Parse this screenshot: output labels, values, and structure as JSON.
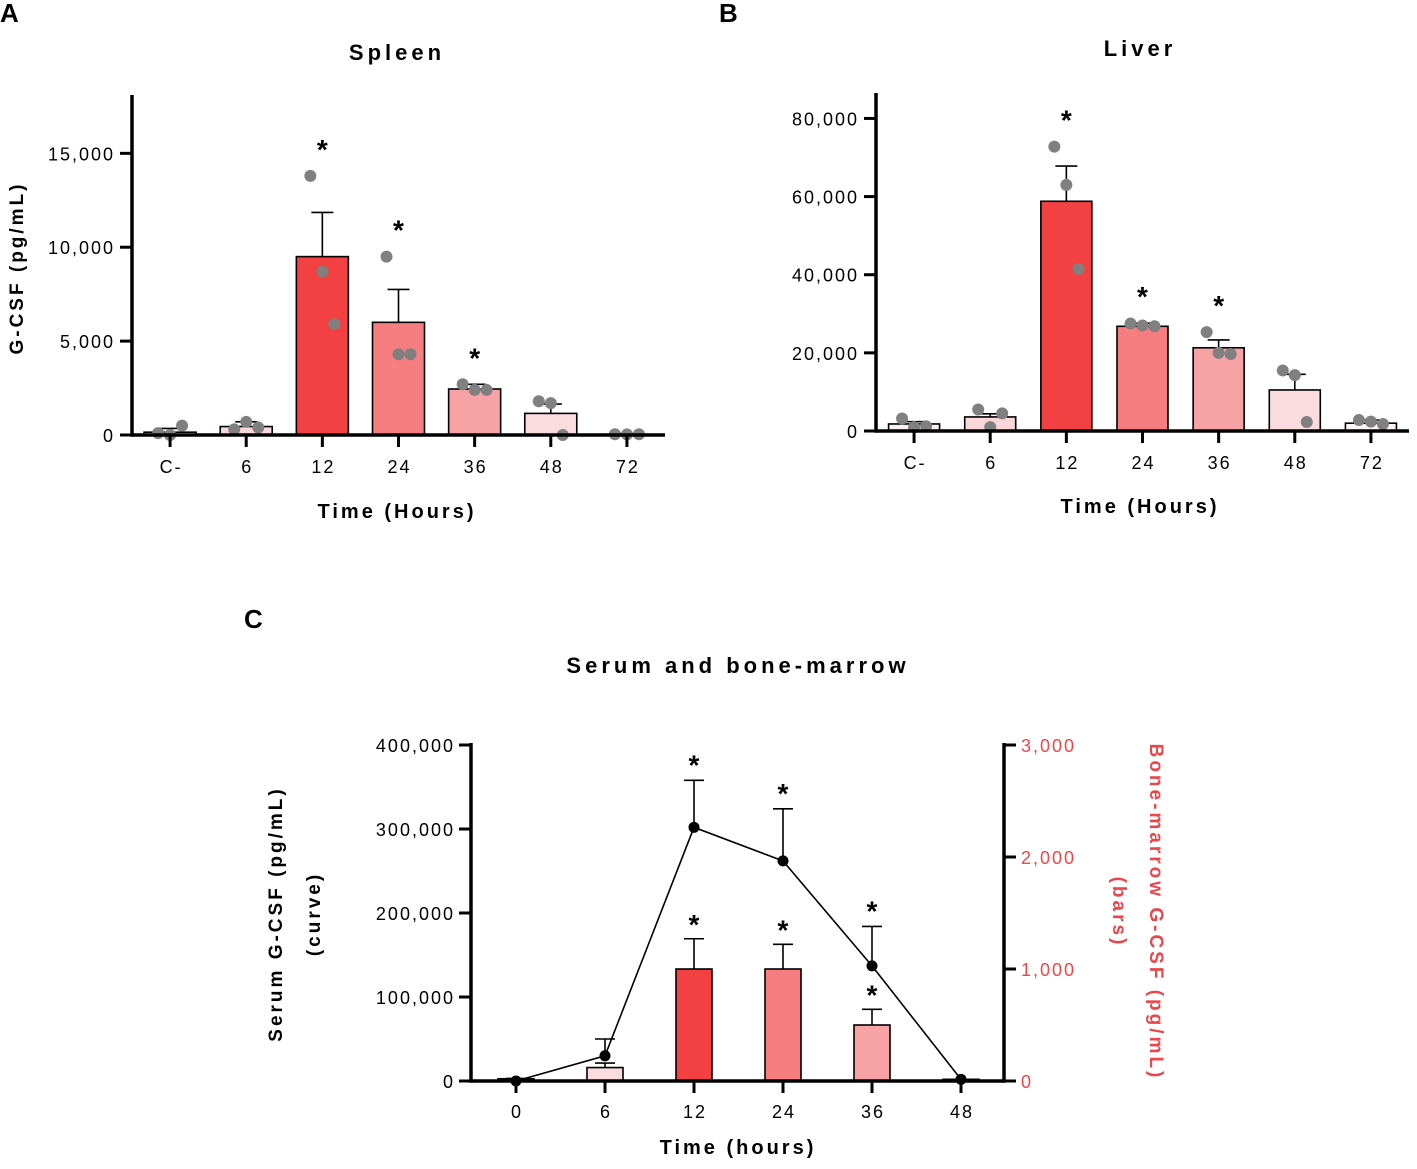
{
  "colors": {
    "axis": "#000000",
    "dot": "#808080",
    "right_axis": "#e8474c",
    "bar_fills": [
      "#fdf0f1",
      "#fbd7da",
      "#f24043",
      "#f67e81",
      "#f7a3a6",
      "#fbdcde",
      "#fff5f5"
    ]
  },
  "chart_data": [
    {
      "panel": "A",
      "type": "bar",
      "title": "Spleen",
      "xlabel": "Time (Hours)",
      "ylabel": "G-CSF (pg/mL)",
      "ylim": [
        0,
        18000
      ],
      "yticks": [
        0,
        5000,
        10000,
        15000
      ],
      "ytick_labels": [
        "0",
        "5,000",
        "10,000",
        "15,000"
      ],
      "categories": [
        "C-",
        "6",
        "12",
        "24",
        "36",
        "48",
        "72"
      ],
      "values": [
        150,
        450,
        9500,
        6000,
        2450,
        1150,
        40
      ],
      "errors": [
        200,
        250,
        2350,
        1750,
        250,
        500,
        40
      ],
      "points": [
        [
          100,
          0,
          500
        ],
        [
          300,
          700,
          400
        ],
        [
          13800,
          8700,
          5900
        ],
        [
          9500,
          4300,
          4300
        ],
        [
          2700,
          2400,
          2400
        ],
        [
          1800,
          1700,
          0
        ],
        [
          40,
          30,
          40
        ]
      ],
      "significant": [
        false,
        false,
        true,
        true,
        true,
        false,
        false
      ],
      "star_label": "*"
    },
    {
      "panel": "B",
      "type": "bar",
      "title": "Liver",
      "xlabel": "Time (Hours)",
      "ylabel": "",
      "ylim": [
        0,
        86000
      ],
      "yticks": [
        0,
        20000,
        40000,
        60000,
        80000
      ],
      "ytick_labels": [
        "0",
        "20,000",
        "40,000",
        "60,000",
        "80,000"
      ],
      "categories": [
        "C-",
        "6",
        "12",
        "24",
        "36",
        "48",
        "72"
      ],
      "values": [
        1800,
        3600,
        58800,
        26800,
        21300,
        10500,
        2000
      ],
      "errors": [
        600,
        800,
        9000,
        800,
        2000,
        4000,
        800
      ],
      "points": [
        [
          3200,
          1000,
          1200
        ],
        [
          5500,
          1000,
          4500
        ],
        [
          72800,
          63000,
          41500
        ],
        [
          27500,
          27000,
          26800
        ],
        [
          25300,
          20000,
          19700
        ],
        [
          15500,
          14300,
          2300
        ],
        [
          2800,
          2400,
          1800
        ]
      ],
      "significant": [
        false,
        false,
        true,
        true,
        true,
        false,
        false
      ],
      "star_label": "*"
    },
    {
      "panel": "C",
      "type": "bar+line",
      "title": "Serum and bone-marrow",
      "xlabel": "Time (hours)",
      "ylabel_left": [
        "Serum G-CSF (pg/mL)",
        "(curve)"
      ],
      "ylabel_right": [
        "Bone-marrow G-CSF (pg/mL)",
        "(bars)"
      ],
      "categories": [
        "0",
        "6",
        "12",
        "24",
        "36",
        "48"
      ],
      "left_axis": {
        "ylim": [
          0,
          400000
        ],
        "yticks": [
          0,
          100000,
          200000,
          300000,
          400000
        ],
        "ytick_labels": [
          "0",
          "100,000",
          "200,000",
          "300,000",
          "400,000"
        ]
      },
      "right_axis": {
        "ylim": [
          0,
          3000
        ],
        "yticks": [
          0,
          1000,
          2000,
          3000
        ],
        "ytick_labels": [
          "0",
          "1,000",
          "2,000",
          "3,000"
        ]
      },
      "curve": {
        "name": "Serum G-CSF",
        "values": [
          0,
          30000,
          302000,
          262000,
          137000,
          2000
        ],
        "errors": [
          3000,
          20000,
          56000,
          62000,
          47000,
          0
        ],
        "significant": [
          false,
          false,
          true,
          true,
          true,
          false
        ]
      },
      "bars": {
        "name": "Bone-marrow G-CSF",
        "values": [
          20,
          120,
          1000,
          1000,
          500,
          15
        ],
        "errors": [
          0,
          40,
          270,
          220,
          140,
          0
        ],
        "significant": [
          false,
          false,
          true,
          true,
          true,
          false
        ]
      },
      "star_label": "*"
    }
  ],
  "panel_labels": [
    "A",
    "B",
    "C"
  ]
}
